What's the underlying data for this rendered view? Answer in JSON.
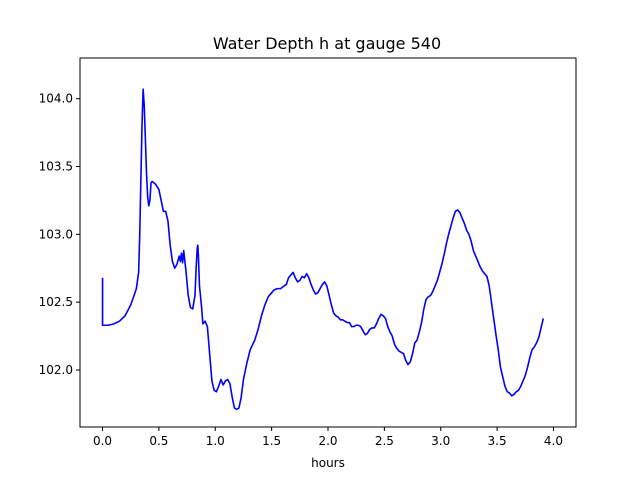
{
  "chart_data": {
    "type": "line",
    "title": "Water Depth h at gauge 540",
    "xlabel": "hours",
    "ylabel": "",
    "xlim": [
      -0.2,
      4.2
    ],
    "ylim": [
      101.58,
      104.3
    ],
    "xticks": [
      0.0,
      0.5,
      1.0,
      1.5,
      2.0,
      2.5,
      3.0,
      3.5,
      4.0
    ],
    "xtick_labels": [
      "0.0",
      "0.5",
      "1.0",
      "1.5",
      "2.0",
      "2.5",
      "3.0",
      "3.5",
      "4.0"
    ],
    "yticks": [
      102.0,
      102.5,
      103.0,
      103.5,
      104.0
    ],
    "ytick_labels": [
      "102.0",
      "102.5",
      "103.0",
      "103.5",
      "104.0"
    ],
    "grid": false,
    "series": [
      {
        "color": "#0000ff",
        "points": [
          [
            0.0,
            102.68
          ],
          [
            0.0,
            102.33
          ],
          [
            0.05,
            102.33
          ],
          [
            0.1,
            102.34
          ],
          [
            0.15,
            102.36
          ],
          [
            0.2,
            102.4
          ],
          [
            0.25,
            102.48
          ],
          [
            0.28,
            102.55
          ],
          [
            0.3,
            102.6
          ],
          [
            0.32,
            102.72
          ],
          [
            0.33,
            103.0
          ],
          [
            0.34,
            103.4
          ],
          [
            0.35,
            103.8
          ],
          [
            0.36,
            104.07
          ],
          [
            0.37,
            103.95
          ],
          [
            0.38,
            103.7
          ],
          [
            0.39,
            103.45
          ],
          [
            0.4,
            103.28
          ],
          [
            0.41,
            103.21
          ],
          [
            0.42,
            103.25
          ],
          [
            0.43,
            103.38
          ],
          [
            0.44,
            103.39
          ],
          [
            0.47,
            103.37
          ],
          [
            0.5,
            103.33
          ],
          [
            0.52,
            103.25
          ],
          [
            0.54,
            103.17
          ],
          [
            0.56,
            103.17
          ],
          [
            0.58,
            103.1
          ],
          [
            0.6,
            102.92
          ],
          [
            0.62,
            102.8
          ],
          [
            0.64,
            102.75
          ],
          [
            0.66,
            102.78
          ],
          [
            0.68,
            102.84
          ],
          [
            0.69,
            102.8
          ],
          [
            0.7,
            102.86
          ],
          [
            0.71,
            102.79
          ],
          [
            0.72,
            102.88
          ],
          [
            0.74,
            102.73
          ],
          [
            0.76,
            102.55
          ],
          [
            0.78,
            102.46
          ],
          [
            0.8,
            102.45
          ],
          [
            0.82,
            102.55
          ],
          [
            0.83,
            102.75
          ],
          [
            0.84,
            102.9
          ],
          [
            0.845,
            102.92
          ],
          [
            0.85,
            102.85
          ],
          [
            0.86,
            102.62
          ],
          [
            0.88,
            102.45
          ],
          [
            0.89,
            102.34
          ],
          [
            0.91,
            102.36
          ],
          [
            0.93,
            102.32
          ],
          [
            0.95,
            102.12
          ],
          [
            0.97,
            101.92
          ],
          [
            0.99,
            101.85
          ],
          [
            1.01,
            101.84
          ],
          [
            1.03,
            101.88
          ],
          [
            1.05,
            101.93
          ],
          [
            1.07,
            101.89
          ],
          [
            1.09,
            101.92
          ],
          [
            1.11,
            101.93
          ],
          [
            1.13,
            101.9
          ],
          [
            1.15,
            101.8
          ],
          [
            1.17,
            101.72
          ],
          [
            1.19,
            101.71
          ],
          [
            1.21,
            101.72
          ],
          [
            1.23,
            101.8
          ],
          [
            1.25,
            101.93
          ],
          [
            1.28,
            102.05
          ],
          [
            1.31,
            102.15
          ],
          [
            1.35,
            102.22
          ],
          [
            1.38,
            102.3
          ],
          [
            1.41,
            102.4
          ],
          [
            1.44,
            102.48
          ],
          [
            1.47,
            102.54
          ],
          [
            1.5,
            102.57
          ],
          [
            1.52,
            102.59
          ],
          [
            1.55,
            102.6
          ],
          [
            1.58,
            102.6
          ],
          [
            1.61,
            102.62
          ],
          [
            1.63,
            102.63
          ],
          [
            1.65,
            102.68
          ],
          [
            1.67,
            102.7
          ],
          [
            1.69,
            102.72
          ],
          [
            1.71,
            102.68
          ],
          [
            1.73,
            102.65
          ],
          [
            1.75,
            102.66
          ],
          [
            1.77,
            102.69
          ],
          [
            1.79,
            102.68
          ],
          [
            1.81,
            102.71
          ],
          [
            1.83,
            102.68
          ],
          [
            1.85,
            102.63
          ],
          [
            1.87,
            102.59
          ],
          [
            1.89,
            102.56
          ],
          [
            1.91,
            102.57
          ],
          [
            1.93,
            102.6
          ],
          [
            1.95,
            102.63
          ],
          [
            1.97,
            102.65
          ],
          [
            1.99,
            102.62
          ],
          [
            2.01,
            102.55
          ],
          [
            2.03,
            102.48
          ],
          [
            2.05,
            102.42
          ],
          [
            2.07,
            102.4
          ],
          [
            2.09,
            102.39
          ],
          [
            2.11,
            102.37
          ],
          [
            2.13,
            102.37
          ],
          [
            2.15,
            102.36
          ],
          [
            2.17,
            102.35
          ],
          [
            2.19,
            102.35
          ],
          [
            2.21,
            102.32
          ],
          [
            2.23,
            102.32
          ],
          [
            2.25,
            102.33
          ],
          [
            2.27,
            102.33
          ],
          [
            2.29,
            102.32
          ],
          [
            2.31,
            102.29
          ],
          [
            2.33,
            102.26
          ],
          [
            2.35,
            102.27
          ],
          [
            2.37,
            102.3
          ],
          [
            2.39,
            102.31
          ],
          [
            2.41,
            102.31
          ],
          [
            2.43,
            102.34
          ],
          [
            2.45,
            102.38
          ],
          [
            2.47,
            102.41
          ],
          [
            2.49,
            102.4
          ],
          [
            2.51,
            102.38
          ],
          [
            2.53,
            102.32
          ],
          [
            2.55,
            102.28
          ],
          [
            2.57,
            102.25
          ],
          [
            2.59,
            102.19
          ],
          [
            2.61,
            102.16
          ],
          [
            2.63,
            102.14
          ],
          [
            2.65,
            102.13
          ],
          [
            2.67,
            102.12
          ],
          [
            2.69,
            102.07
          ],
          [
            2.71,
            102.04
          ],
          [
            2.73,
            102.06
          ],
          [
            2.75,
            102.12
          ],
          [
            2.77,
            102.2
          ],
          [
            2.79,
            102.22
          ],
          [
            2.81,
            102.28
          ],
          [
            2.83,
            102.35
          ],
          [
            2.85,
            102.45
          ],
          [
            2.87,
            102.52
          ],
          [
            2.89,
            102.54
          ],
          [
            2.91,
            102.55
          ],
          [
            2.93,
            102.58
          ],
          [
            2.95,
            102.62
          ],
          [
            2.97,
            102.66
          ],
          [
            2.99,
            102.72
          ],
          [
            3.01,
            102.78
          ],
          [
            3.03,
            102.85
          ],
          [
            3.05,
            102.93
          ],
          [
            3.07,
            103.0
          ],
          [
            3.09,
            103.06
          ],
          [
            3.11,
            103.12
          ],
          [
            3.13,
            103.17
          ],
          [
            3.15,
            103.18
          ],
          [
            3.17,
            103.16
          ],
          [
            3.19,
            103.12
          ],
          [
            3.21,
            103.08
          ],
          [
            3.23,
            103.03
          ],
          [
            3.25,
            103.0
          ],
          [
            3.27,
            102.95
          ],
          [
            3.29,
            102.88
          ],
          [
            3.31,
            102.84
          ],
          [
            3.33,
            102.8
          ],
          [
            3.35,
            102.76
          ],
          [
            3.37,
            102.73
          ],
          [
            3.39,
            102.71
          ],
          [
            3.41,
            102.69
          ],
          [
            3.43,
            102.62
          ],
          [
            3.45,
            102.5
          ],
          [
            3.47,
            102.38
          ],
          [
            3.49,
            102.26
          ],
          [
            3.51,
            102.15
          ],
          [
            3.53,
            102.02
          ],
          [
            3.55,
            101.95
          ],
          [
            3.57,
            101.88
          ],
          [
            3.59,
            101.84
          ],
          [
            3.61,
            101.83
          ],
          [
            3.63,
            101.81
          ],
          [
            3.65,
            101.82
          ],
          [
            3.67,
            101.84
          ],
          [
            3.69,
            101.85
          ],
          [
            3.71,
            101.88
          ],
          [
            3.73,
            101.92
          ],
          [
            3.75,
            101.96
          ],
          [
            3.77,
            102.02
          ],
          [
            3.79,
            102.09
          ],
          [
            3.81,
            102.15
          ],
          [
            3.83,
            102.17
          ],
          [
            3.85,
            102.2
          ],
          [
            3.87,
            102.24
          ],
          [
            3.89,
            102.31
          ],
          [
            3.91,
            102.38
          ]
        ]
      }
    ]
  }
}
